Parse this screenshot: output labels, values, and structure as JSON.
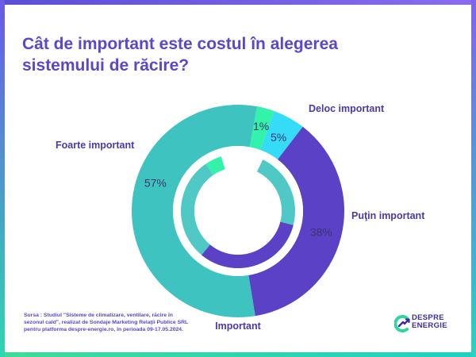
{
  "title": "Cât de important este costul în alegerea sistemului de răcire?",
  "source": "Sursa : Studiul \"Sisteme de climatizare, ventilare, răcire în sezonul cald\", realizat de Sondaje Marketing Relaţii Publice SRL pentru platforma despre-energie.ro, în perioada 09-17.05.2024.",
  "logo": {
    "line1": "DESPRE",
    "line2": "ENERGIE",
    "icon": "despre-energie-logo-icon"
  },
  "colors": {
    "title": "#5b47c9",
    "label": "#4a3aa8",
    "deloc_important": "#33f2a9",
    "putin_important": "#35dcf7",
    "important": "#5a41c6",
    "foarte_important": "#3fc3c0",
    "inner_track": "#4fc8c6"
  },
  "chart_data": {
    "type": "pie",
    "style": "donut",
    "title": "Cât de important este costul în alegerea sistemului de răcire?",
    "series": [
      {
        "name": "Deloc important",
        "value": 1,
        "label": "1%",
        "color": "#33f2a9"
      },
      {
        "name": "Puţin important",
        "value": 5,
        "label": "5%",
        "color": "#35dcf7"
      },
      {
        "name": "Important",
        "value": 38,
        "label": "38%",
        "color": "#5a41c6"
      },
      {
        "name": "Foarte important",
        "value": 57,
        "label": "57%",
        "color": "#3fc3c0"
      }
    ],
    "legend": "labels next to slices"
  }
}
